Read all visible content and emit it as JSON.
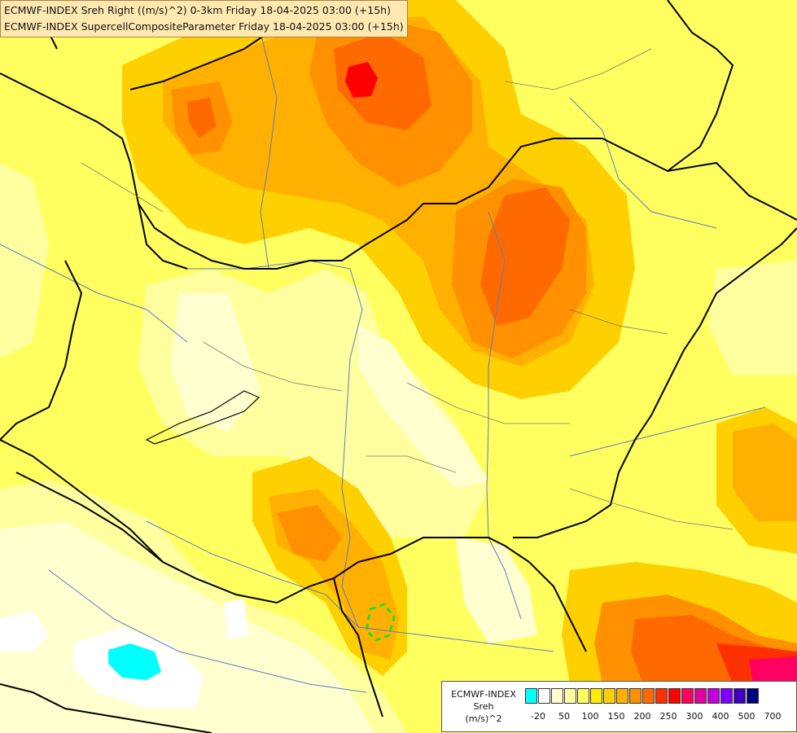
{
  "title": {
    "line1": "ECMWF-INDEX Sreh Right ((m/s)^2) 0-3km Friday 18-04-2025 03:00 (+15h)",
    "line2": "ECMWF-INDEX SupercellCompositeParameter Friday 18-04-2025 03:00 (+15h)"
  },
  "legend": {
    "source": "ECMWF-INDEX",
    "variable": "Sreh",
    "unit": "(m/s)^2",
    "colors": [
      "#00ffff",
      "#ffffff",
      "#ffffd0",
      "#ffffa0",
      "#ffff60",
      "#ffee00",
      "#ffd000",
      "#ffb000",
      "#ff9000",
      "#ff6a00",
      "#ff3000",
      "#ff0000",
      "#ff0060",
      "#e000a0",
      "#c000e0",
      "#8000ff",
      "#4000c0",
      "#000080"
    ],
    "ticks": [
      {
        "label": "-20",
        "index": 1
      },
      {
        "label": "50",
        "index": 3
      },
      {
        "label": "100",
        "index": 5
      },
      {
        "label": "150",
        "index": 7
      },
      {
        "label": "200",
        "index": 9
      },
      {
        "label": "250",
        "index": 11
      },
      {
        "label": "300",
        "index": 13
      },
      {
        "label": "400",
        "index": 15
      },
      {
        "label": "500",
        "index": 17
      },
      {
        "label": "700",
        "index": 19
      }
    ]
  },
  "map": {
    "colors": {
      "background": "#ffff60",
      "pale": "#ffffd0",
      "light": "#ffffa0",
      "yellow": "#ffee00",
      "gold": "#ffd000",
      "orange_light": "#ffb000",
      "orange": "#ff9000",
      "orange_dark": "#ff6a00",
      "red_orange": "#ff3000",
      "red": "#ff0000",
      "magenta": "#ff0060",
      "cyan": "#00ffff",
      "white": "#ffffff",
      "border": "#000000",
      "river": "#5a7fc0",
      "contour": "#22dd22"
    }
  }
}
